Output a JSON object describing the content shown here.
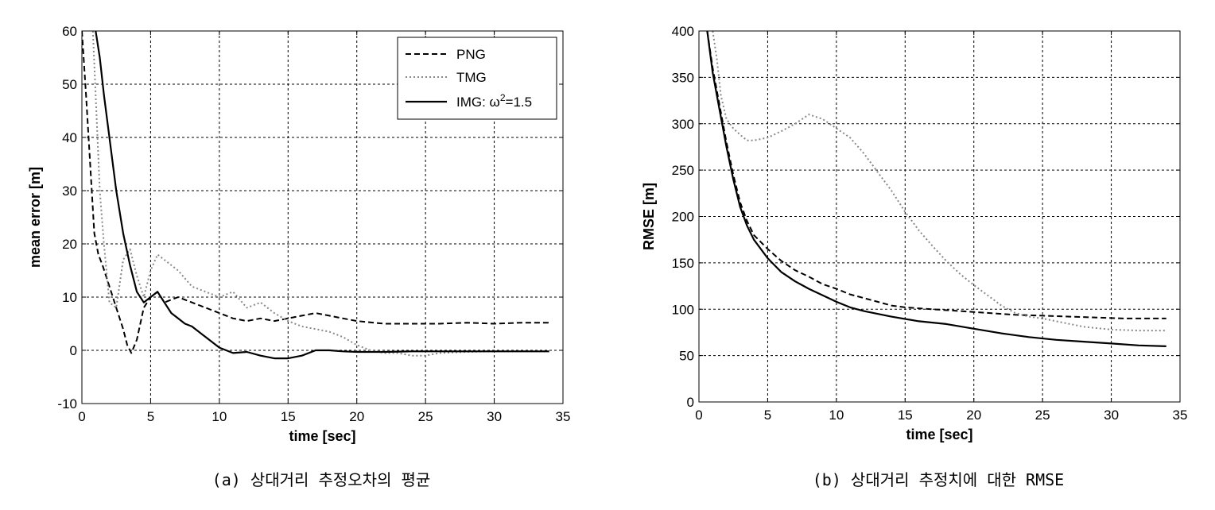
{
  "chart_data": [
    {
      "type": "line",
      "caption": "(a) 상대거리 추정오차의 평균",
      "xlabel": "time [sec]",
      "ylabel": "mean error [m]",
      "xlim": [
        0,
        35
      ],
      "ylim": [
        -10,
        60
      ],
      "xticks": [
        0,
        5,
        10,
        15,
        20,
        25,
        30,
        35
      ],
      "yticks": [
        -10,
        0,
        10,
        20,
        30,
        40,
        50,
        60
      ],
      "grid": true,
      "legend": "top-right",
      "series": [
        {
          "name": "PNG",
          "style": "dashed",
          "color": "#000000",
          "x": [
            0,
            0.3,
            0.6,
            0.9,
            1.2,
            1.5,
            2.0,
            2.5,
            3.0,
            3.3,
            3.6,
            4.0,
            4.5,
            5.0,
            5.5,
            6.0,
            7.0,
            8.0,
            9.0,
            10.0,
            11.0,
            12.0,
            13.0,
            14.0,
            15.0,
            16.0,
            17.0,
            18.0,
            19.0,
            20.0,
            22.0,
            24.0,
            26.0,
            28.0,
            30.0,
            32.0,
            34.0
          ],
          "y": [
            60,
            48,
            35,
            22,
            18,
            16,
            12,
            8,
            4,
            1,
            -0.5,
            2,
            8,
            10,
            11,
            9,
            10,
            9,
            8,
            7,
            6,
            5.5,
            6,
            5.5,
            6,
            6.5,
            7,
            6.5,
            6,
            5.5,
            5,
            5,
            5,
            5.2,
            5,
            5.2,
            5.2
          ]
        },
        {
          "name": "TMG",
          "style": "dotted",
          "color": "#888888",
          "x": [
            0.8,
            1.0,
            1.3,
            1.6,
            2.0,
            2.5,
            3.0,
            3.5,
            4.0,
            4.5,
            5.0,
            5.5,
            6.0,
            7.0,
            8.0,
            9.0,
            10.0,
            11.0,
            12.0,
            13.0,
            14.0,
            15.0,
            16.0,
            17.0,
            18.0,
            19.0,
            20.0,
            21.0,
            22.0,
            23.0,
            24.0,
            25.0,
            26.0,
            28.0,
            30.0,
            32.0,
            34.0
          ],
          "y": [
            60,
            48,
            30,
            20,
            9,
            8,
            17,
            19,
            14,
            10,
            15,
            18,
            17,
            15,
            12,
            11,
            10,
            11,
            8,
            9,
            7,
            5.5,
            4.5,
            4,
            3.5,
            2.5,
            1,
            0,
            -0.5,
            -0.5,
            -1,
            -1,
            -0.5,
            -0.3,
            -0.2,
            -0.2,
            -0.2
          ]
        },
        {
          "name": "IMG: ω²=1.5",
          "style": "solid",
          "color": "#000000",
          "x": [
            1.0,
            1.3,
            1.6,
            2.0,
            2.5,
            3.0,
            3.5,
            4.0,
            4.5,
            5.0,
            5.5,
            6.0,
            6.5,
            7.0,
            7.5,
            8.0,
            9.0,
            10.0,
            11.0,
            12.0,
            13.0,
            14.0,
            15.0,
            16.0,
            17.0,
            18.0,
            19.0,
            20.0,
            22.0,
            24.0,
            26.0,
            28.0,
            30.0,
            32.0,
            34.0
          ],
          "y": [
            60,
            55,
            48,
            40,
            30,
            22,
            16,
            11,
            9,
            10,
            11,
            9,
            7,
            6,
            5,
            4.5,
            2.5,
            0.5,
            -0.5,
            -0.3,
            -1,
            -1.5,
            -1.5,
            -1,
            0,
            0,
            -0.2,
            -0.3,
            -0.3,
            -0.2,
            -0.2,
            -0.2,
            -0.2,
            -0.2,
            -0.2
          ]
        }
      ]
    },
    {
      "type": "line",
      "caption": "(b) 상대거리 추정치에 대한 RMSE",
      "xlabel": "time [sec]",
      "ylabel": "RMSE [m]",
      "xlim": [
        0,
        35
      ],
      "ylim": [
        0,
        400
      ],
      "xticks": [
        0,
        5,
        10,
        15,
        20,
        25,
        30,
        35
      ],
      "yticks": [
        0,
        50,
        100,
        150,
        200,
        250,
        300,
        350,
        400
      ],
      "grid": true,
      "series": [
        {
          "style": "dashed",
          "color": "#000000",
          "x": [
            0.6,
            1.0,
            1.5,
            2.0,
            2.5,
            3.0,
            3.5,
            4.0,
            5.0,
            6.0,
            7.0,
            8.0,
            9.0,
            10.0,
            11.0,
            12.0,
            13.0,
            14.0,
            15.0,
            17.0,
            19.0,
            21.0,
            23.0,
            25.0,
            27.0,
            29.0,
            31.0,
            33.0,
            34.0
          ],
          "y": [
            400,
            360,
            320,
            280,
            245,
            215,
            195,
            180,
            165,
            152,
            142,
            135,
            127,
            122,
            116,
            112,
            108,
            104,
            102,
            100,
            98,
            96,
            94,
            93,
            92,
            91,
            90,
            90,
            90
          ]
        },
        {
          "style": "dotted",
          "color": "#888888",
          "x": [
            1.0,
            1.3,
            1.6,
            2.0,
            2.5,
            3.0,
            3.5,
            4.0,
            5.0,
            6.0,
            7.0,
            8.0,
            9.0,
            10.0,
            11.0,
            12.0,
            13.0,
            14.0,
            15.0,
            16.0,
            17.0,
            18.0,
            19.0,
            20.0,
            21.0,
            22.0,
            23.0,
            24.0,
            25.0,
            26.0,
            27.0,
            28.0,
            30.0,
            32.0,
            34.0
          ],
          "y": [
            400,
            370,
            330,
            305,
            295,
            288,
            282,
            282,
            285,
            292,
            300,
            310,
            305,
            295,
            285,
            268,
            248,
            228,
            205,
            185,
            168,
            152,
            138,
            126,
            115,
            104,
            96,
            92,
            90,
            87,
            84,
            81,
            78,
            77,
            77
          ]
        },
        {
          "style": "solid",
          "color": "#000000",
          "x": [
            0.6,
            1.0,
            1.5,
            2.0,
            2.5,
            3.0,
            3.5,
            4.0,
            5.0,
            6.0,
            7.0,
            8.0,
            9.0,
            10.0,
            11.0,
            12.0,
            14.0,
            16.0,
            18.0,
            20.0,
            22.0,
            24.0,
            26.0,
            28.0,
            30.0,
            32.0,
            34.0
          ],
          "y": [
            400,
            355,
            315,
            275,
            240,
            210,
            190,
            175,
            155,
            140,
            130,
            122,
            115,
            108,
            102,
            98,
            92,
            87,
            84,
            79,
            74,
            70,
            67,
            65,
            63,
            61,
            60
          ]
        }
      ]
    }
  ],
  "legend_a": {
    "png_label": "PNG",
    "tmg_label": "TMG",
    "img_label_main": "IMG: ω",
    "img_label_sup": "2",
    "img_label_tail": "=1.5"
  }
}
